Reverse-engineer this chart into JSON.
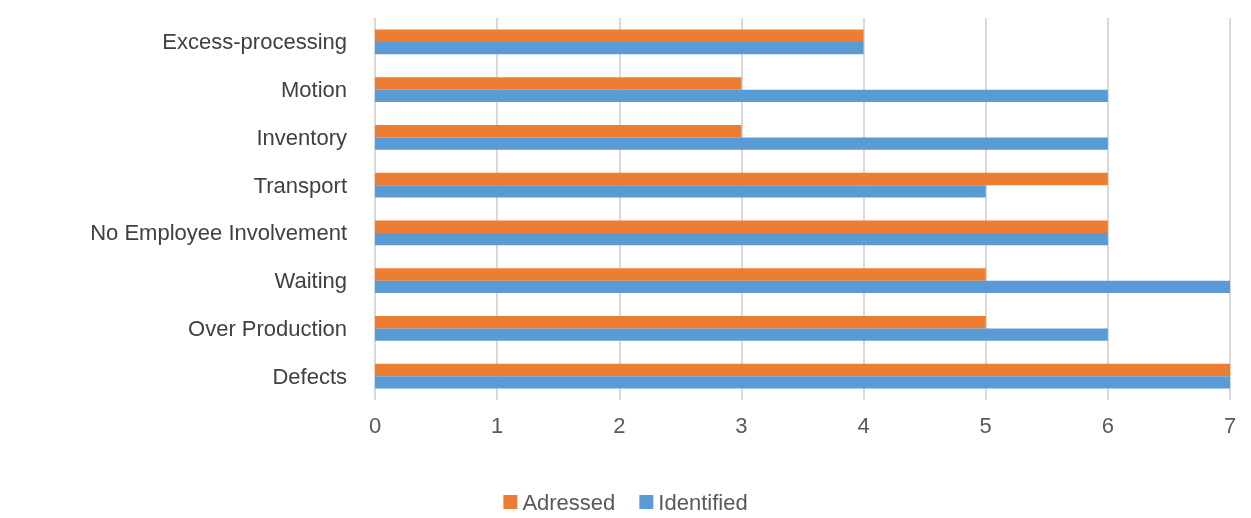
{
  "chart_data": {
    "type": "bar",
    "orientation": "horizontal",
    "categories": [
      "Excess-processing",
      "Motion",
      "Inventory",
      "Transport",
      "No Employee Involvement",
      "Waiting",
      "Over Production",
      "Defects"
    ],
    "series": [
      {
        "name": "Adressed",
        "color": "#ed7d31",
        "values": [
          4,
          3,
          3,
          6,
          6,
          5,
          5,
          7
        ]
      },
      {
        "name": "Identified",
        "color": "#5b9bd5",
        "values": [
          4,
          6,
          6,
          5,
          6,
          7,
          6,
          7
        ]
      }
    ],
    "xlim": [
      0,
      7
    ],
    "xticks": [
      0,
      1,
      2,
      3,
      4,
      5,
      6,
      7
    ],
    "grid": "x",
    "legend": "bottom"
  }
}
